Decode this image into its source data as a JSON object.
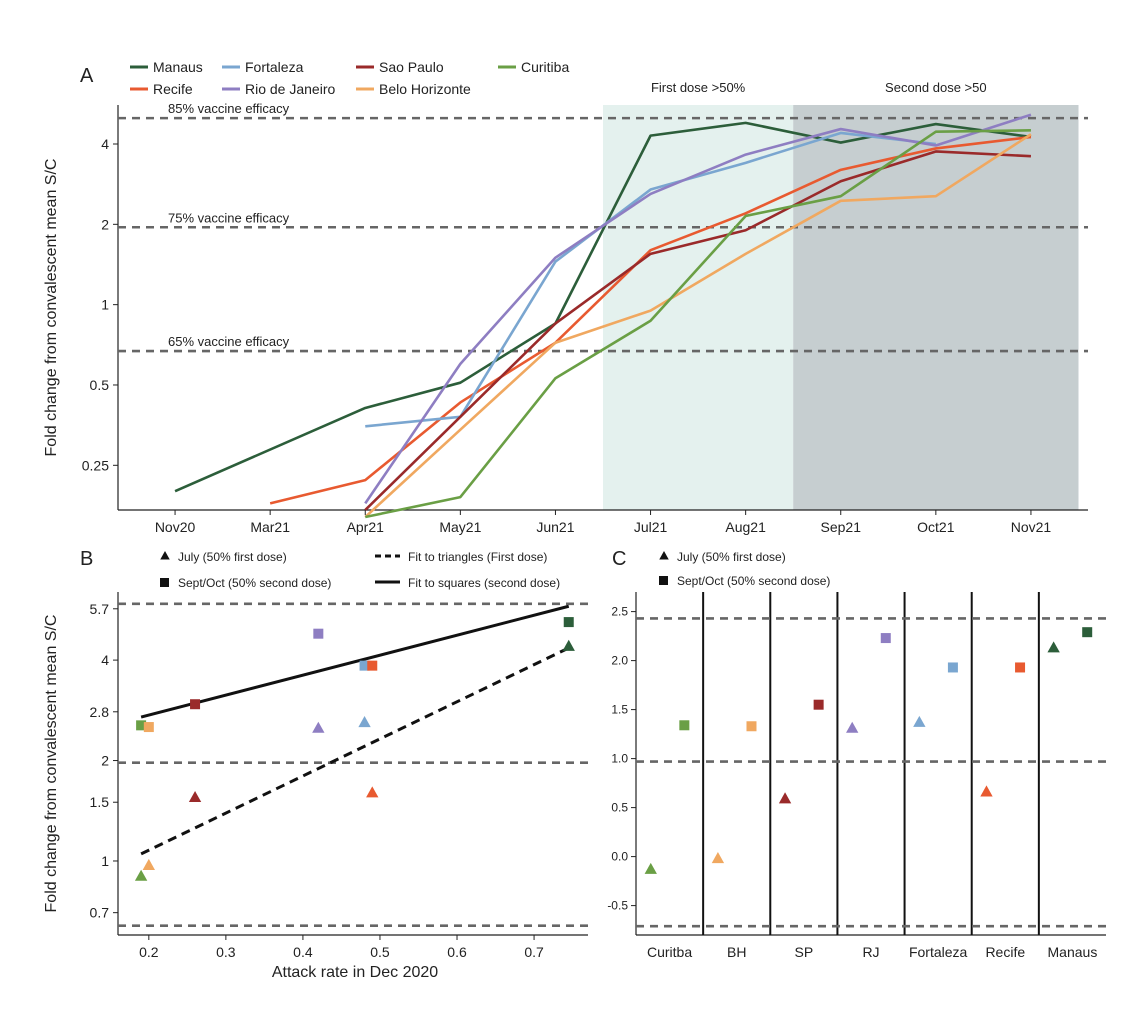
{
  "colors": {
    "Manaus": "#2c5e3a",
    "Recife": "#e85a30",
    "Fortaleza": "#7aa6d0",
    "Rio de Janeiro": "#8e7ec2",
    "Sao Paulo": "#9a2a2a",
    "Belo Horizonte": "#f0a860",
    "Curitiba": "#6a9f45",
    "first_dose_band": "#e4f1ee",
    "second_dose_band": "#c6ced0",
    "reference_line": "#666666"
  },
  "chart_data": [
    {
      "id": "A",
      "type": "line",
      "panel_label": "A",
      "xlabel": "",
      "ylabel": "Fold change from convalescent mean S/C",
      "y_scale": "log2",
      "ylim": [
        0.17,
        5.6
      ],
      "categories": [
        "Nov20",
        "Mar21",
        "Apr21",
        "May21",
        "Jun21",
        "Jul21",
        "Aug21",
        "Sep21",
        "Oct21",
        "Nov21"
      ],
      "y_ticks": [
        {
          "value": 0.25,
          "label": "0.25"
        },
        {
          "value": 0.5,
          "label": "0.5"
        },
        {
          "value": 1,
          "label": "1"
        },
        {
          "value": 2,
          "label": "2"
        },
        {
          "value": 4,
          "label": "4"
        }
      ],
      "bands": [
        {
          "label": "First dose >50%",
          "from": 4.5,
          "to": 6.5,
          "color_key": "first_dose_band"
        },
        {
          "label": "Second dose >50",
          "from": 6.5,
          "to": 9.5,
          "color_key": "second_dose_band"
        }
      ],
      "reference_lines": [
        {
          "label": "85% vaccine efficacy",
          "value": 5.0
        },
        {
          "label": "75% vaccine efficacy",
          "value": 1.95
        },
        {
          "label": "65% vaccine efficacy",
          "value": 0.67
        }
      ],
      "series": [
        {
          "name": "Manaus",
          "x": [
            0,
            2,
            3,
            4,
            5,
            6,
            7,
            8,
            9
          ],
          "values": [
            0.2,
            0.41,
            0.51,
            0.85,
            4.3,
            4.8,
            4.05,
            4.75,
            4.25
          ]
        },
        {
          "name": "Recife",
          "x": [
            1,
            2,
            3,
            4,
            5,
            6,
            7,
            8,
            9
          ],
          "values": [
            0.18,
            0.22,
            0.43,
            0.72,
            1.6,
            2.2,
            3.2,
            3.85,
            4.25
          ]
        },
        {
          "name": "Fortaleza",
          "x": [
            2,
            3,
            4,
            5,
            6,
            7,
            8
          ],
          "values": [
            0.35,
            0.38,
            1.45,
            2.7,
            3.4,
            4.4,
            4.0
          ]
        },
        {
          "name": "Rio de Janeiro",
          "x": [
            2,
            3,
            4,
            5,
            6,
            7,
            8,
            9
          ],
          "values": [
            0.18,
            0.6,
            1.5,
            2.6,
            3.65,
            4.55,
            3.95,
            5.15
          ]
        },
        {
          "name": "Sao Paulo",
          "x": [
            2,
            3,
            4,
            5,
            6,
            7,
            8,
            9
          ],
          "values": [
            0.17,
            0.38,
            0.85,
            1.55,
            1.9,
            2.9,
            3.75,
            3.6
          ]
        },
        {
          "name": "Belo Horizonte",
          "x": [
            2,
            3,
            4,
            5,
            6,
            7,
            8,
            9
          ],
          "values": [
            0.16,
            0.34,
            0.72,
            0.95,
            1.55,
            2.45,
            2.55,
            4.35
          ]
        },
        {
          "name": "Curitiba",
          "x": [
            2,
            3,
            4,
            5,
            6,
            7,
            8,
            9
          ],
          "values": [
            0.16,
            0.19,
            0.53,
            0.87,
            2.15,
            2.55,
            4.45,
            4.5
          ]
        }
      ],
      "legend": [
        "Manaus",
        "Recife",
        "Fortaleza",
        "Rio de Janeiro",
        "Sao Paulo",
        "Belo Horizonte",
        "Curitiba"
      ]
    },
    {
      "id": "B",
      "type": "scatter",
      "panel_label": "B",
      "xlabel": "Attack rate in Dec 2020",
      "ylabel": "Fold change from convalescent mean S/C",
      "y_scale": "log2",
      "xlim": [
        0.16,
        0.77
      ],
      "ylim": [
        0.6,
        6.4
      ],
      "x_ticks": [
        {
          "value": 0.2,
          "label": "0.2"
        },
        {
          "value": 0.3,
          "label": "0.3"
        },
        {
          "value": 0.4,
          "label": "0.4"
        },
        {
          "value": 0.5,
          "label": "0.5"
        },
        {
          "value": 0.6,
          "label": "0.6"
        },
        {
          "value": 0.7,
          "label": "0.7"
        }
      ],
      "y_ticks": [
        {
          "value": 0.7,
          "label": "0.7"
        },
        {
          "value": 1,
          "label": "1"
        },
        {
          "value": 1.5,
          "label": "1.5"
        },
        {
          "value": 2,
          "label": "2"
        },
        {
          "value": 2.8,
          "label": "2.8"
        },
        {
          "value": 4,
          "label": "4"
        },
        {
          "value": 5.7,
          "label": "5.7"
        }
      ],
      "reference_lines": [
        5.9,
        1.97,
        0.64
      ],
      "legend": {
        "triangle": "July (50% first dose)",
        "square": "Sept/Oct (50% second dose)",
        "dashed": "Fit to triangles (First dose)",
        "solid": "Fit to squares (second dose)"
      },
      "triangles": [
        {
          "city": "Curitiba",
          "x": 0.19,
          "y": 0.9
        },
        {
          "city": "Belo Horizonte",
          "x": 0.2,
          "y": 0.97
        },
        {
          "city": "Sao Paulo",
          "x": 0.26,
          "y": 1.55
        },
        {
          "city": "Rio de Janeiro",
          "x": 0.42,
          "y": 2.5
        },
        {
          "city": "Fortaleza",
          "x": 0.48,
          "y": 2.6
        },
        {
          "city": "Recife",
          "x": 0.49,
          "y": 1.6
        },
        {
          "city": "Manaus",
          "x": 0.745,
          "y": 4.4
        }
      ],
      "squares": [
        {
          "city": "Curitiba",
          "x": 0.19,
          "y": 2.55
        },
        {
          "city": "Belo Horizonte",
          "x": 0.2,
          "y": 2.52
        },
        {
          "city": "Sao Paulo",
          "x": 0.26,
          "y": 2.95
        },
        {
          "city": "Rio de Janeiro",
          "x": 0.42,
          "y": 4.8
        },
        {
          "city": "Fortaleza",
          "x": 0.48,
          "y": 3.85
        },
        {
          "city": "Recife",
          "x": 0.49,
          "y": 3.85
        },
        {
          "city": "Manaus",
          "x": 0.745,
          "y": 5.2
        }
      ],
      "fit_triangles": {
        "x": [
          0.19,
          0.745
        ],
        "y": [
          1.05,
          4.35
        ]
      },
      "fit_squares": {
        "x": [
          0.19,
          0.745
        ],
        "y": [
          2.7,
          5.8
        ]
      }
    },
    {
      "id": "C",
      "type": "scatter",
      "panel_label": "C",
      "categories": [
        "Curitba",
        "BH",
        "SP",
        "RJ",
        "Fortaleza",
        "Recife",
        "Manaus"
      ],
      "category_colors": [
        "Curitiba",
        "Belo Horizonte",
        "Sao Paulo",
        "Rio de Janeiro",
        "Fortaleza",
        "Recife",
        "Manaus"
      ],
      "ylim": [
        -0.8,
        2.7
      ],
      "y_ticks": [
        {
          "value": -0.5,
          "label": "-0.5"
        },
        {
          "value": 0,
          "label": "0.0"
        },
        {
          "value": 0.5,
          "label": "0.5"
        },
        {
          "value": 1.0,
          "label": "1.0"
        },
        {
          "value": 1.5,
          "label": "1.5"
        },
        {
          "value": 2.0,
          "label": "2.0"
        },
        {
          "value": 2.5,
          "label": "2.5"
        }
      ],
      "reference_lines": [
        2.43,
        0.97,
        -0.71
      ],
      "legend": {
        "triangle": "July (50% first dose)",
        "square": "Sept/Oct (50% second dose)"
      },
      "triangles": [
        -0.13,
        -0.02,
        0.59,
        1.31,
        1.37,
        0.66,
        2.13
      ],
      "squares": [
        1.34,
        1.33,
        1.55,
        2.23,
        1.93,
        1.93,
        2.29
      ]
    }
  ]
}
